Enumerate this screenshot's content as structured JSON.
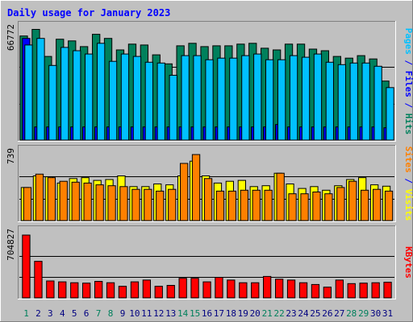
{
  "chart_data": {
    "type": "bar",
    "title": "Daily usage for January 2023",
    "categories": [
      "1",
      "2",
      "3",
      "4",
      "5",
      "6",
      "7",
      "8",
      "9",
      "10",
      "11",
      "12",
      "13",
      "14",
      "15",
      "16",
      "17",
      "18",
      "19",
      "20",
      "21",
      "22",
      "23",
      "24",
      "25",
      "26",
      "27",
      "28",
      "29",
      "30",
      "31"
    ],
    "weekend_days": [
      "1",
      "7",
      "8",
      "14",
      "15",
      "21",
      "22",
      "28",
      "29"
    ],
    "top_panel": {
      "axis_max_label": "66772",
      "ylim": [
        0,
        66772
      ],
      "series": [
        {
          "name": "Hits",
          "color": "#00805c",
          "values": [
            63500,
            67500,
            51000,
            61500,
            60500,
            57000,
            64500,
            62000,
            55000,
            58500,
            58000,
            52000,
            46500,
            57500,
            59000,
            57000,
            57500,
            57500,
            58500,
            59000,
            56000,
            55000,
            58500,
            58500,
            55500,
            54500,
            51000,
            50000,
            51500,
            49500,
            36000
          ]
        },
        {
          "name": "Files",
          "color": "#0000ff",
          "values": [
            62000,
            8000,
            8000,
            8000,
            8000,
            8000,
            8000,
            8000,
            8000,
            8000,
            8000,
            8000,
            8000,
            8000,
            8000,
            8000,
            8000,
            8000,
            8000,
            8000,
            8000,
            9500,
            8000,
            8000,
            8000,
            8000,
            8000,
            8000,
            8000,
            8000,
            7500
          ]
        },
        {
          "name": "Pages",
          "color": "#00c0ff",
          "values": [
            58000,
            62000,
            45500,
            56500,
            54500,
            52500,
            59000,
            48000,
            52500,
            51000,
            47500,
            47000,
            39500,
            51500,
            51500,
            49000,
            50000,
            50000,
            51500,
            52500,
            49000,
            49000,
            51500,
            50500,
            52500,
            47500,
            46000,
            47000,
            47000,
            45000,
            32000
          ]
        }
      ]
    },
    "mid_panel": {
      "axis_max_label": "739",
      "ylim": [
        0,
        739
      ],
      "series": [
        {
          "name": "Visits",
          "color": "#ffff00",
          "values": [
            370,
            500,
            490,
            420,
            470,
            480,
            450,
            460,
            500,
            380,
            380,
            410,
            400,
            500,
            665,
            500,
            420,
            440,
            450,
            380,
            390,
            530,
            410,
            360,
            380,
            340,
            390,
            460,
            480,
            400,
            385
          ]
        },
        {
          "name": "Sites",
          "color": "#ff8000",
          "values": [
            370,
            520,
            480,
            440,
            430,
            420,
            400,
            390,
            380,
            350,
            350,
            330,
            350,
            640,
            739,
            470,
            330,
            330,
            340,
            340,
            340,
            530,
            300,
            300,
            320,
            300,
            370,
            440,
            340,
            350,
            330
          ]
        }
      ]
    },
    "bottom_panel": {
      "axis_max_label": "704827",
      "ylim": [
        0,
        704827
      ],
      "series": [
        {
          "name": "KBytes",
          "color": "#ff0000",
          "values": [
            704827,
            410000,
            190000,
            180000,
            170000,
            165000,
            185000,
            170000,
            130000,
            180000,
            200000,
            130000,
            140000,
            220000,
            220000,
            180000,
            230000,
            200000,
            170000,
            170000,
            240000,
            210000,
            200000,
            170000,
            150000,
            120000,
            200000,
            160000,
            165000,
            170000,
            175000
          ]
        }
      ]
    },
    "right_label_parts": [
      {
        "text": "Pages",
        "color": "#00c0ff"
      },
      {
        "text": " / ",
        "color": "#0000ff"
      },
      {
        "text": "Files",
        "color": "#0000ff"
      },
      {
        "text": " / ",
        "color": "#0000ff"
      },
      {
        "text": "Hits",
        "color": "#00805c"
      }
    ],
    "mid_label_parts": [
      {
        "text": "Sites",
        "color": "#ff8000"
      },
      {
        "text": " / ",
        "color": "#0000ff"
      },
      {
        "text": "Visits",
        "color": "#ffff00"
      }
    ],
    "bottom_label_parts": [
      {
        "text": "KBytes",
        "color": "#ff0000"
      }
    ],
    "colors": {
      "background": "#c0c0c0",
      "panel": "#c0c0c0",
      "title": "#0000ff",
      "weekday_label": "#000080",
      "weekend_label": "#00805c",
      "axis_label": "#000000",
      "gridline": "#000000"
    },
    "grid": true,
    "legend": "right-vertical"
  }
}
